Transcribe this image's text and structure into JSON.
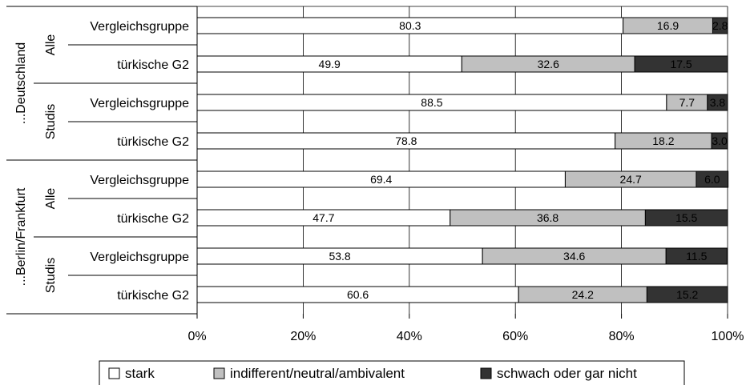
{
  "chart_data": {
    "type": "bar",
    "stacked": true,
    "orientation": "horizontal",
    "groups": [
      {
        "label": "...Deutschland",
        "subgroups": [
          {
            "label": "Alle",
            "rows": [
              "Vergleichsgruppe",
              "türkische G2"
            ]
          },
          {
            "label": "Studis",
            "rows": [
              "Vergleichsgruppe",
              "türkische G2"
            ]
          }
        ]
      },
      {
        "label": "...Berlin/Frankfurt",
        "subgroups": [
          {
            "label": "Alle",
            "rows": [
              "Vergleichsgruppe",
              "türkische G2"
            ]
          },
          {
            "label": "Studis",
            "rows": [
              "Vergleichsgruppe",
              "türkische G2"
            ]
          }
        ]
      }
    ],
    "series": [
      {
        "name": "stark",
        "color": "#ffffff",
        "values": [
          80.3,
          49.9,
          88.5,
          78.8,
          69.4,
          47.7,
          53.8,
          60.6
        ],
        "labels": [
          "80.3",
          "49.9",
          "88.5",
          "78.8",
          "69.4",
          "47.7",
          "53.8",
          "60.6"
        ]
      },
      {
        "name": "indifferent/neutral/ambivalent",
        "color": "#c0c0c0",
        "values": [
          16.9,
          32.6,
          7.7,
          18.2,
          24.7,
          36.8,
          34.6,
          24.2
        ],
        "labels": [
          "16.9",
          "32.6",
          "7.7",
          "18.2",
          "24.7",
          "36.8",
          "34.6",
          "24.2"
        ]
      },
      {
        "name": "schwach oder gar nicht",
        "color": "#333333",
        "values": [
          2.8,
          17.5,
          3.8,
          3.0,
          6.0,
          15.5,
          11.5,
          15.2
        ],
        "labels": [
          "2.8",
          "17.5",
          "3.8",
          "3.0",
          "6.0",
          "15.5",
          "11.5",
          "15.2"
        ]
      }
    ],
    "xlim": [
      0,
      100
    ],
    "xticks": [
      "0%",
      "20%",
      "40%",
      "60%",
      "80%",
      "100%"
    ],
    "grid": true,
    "legend": "bottom"
  }
}
